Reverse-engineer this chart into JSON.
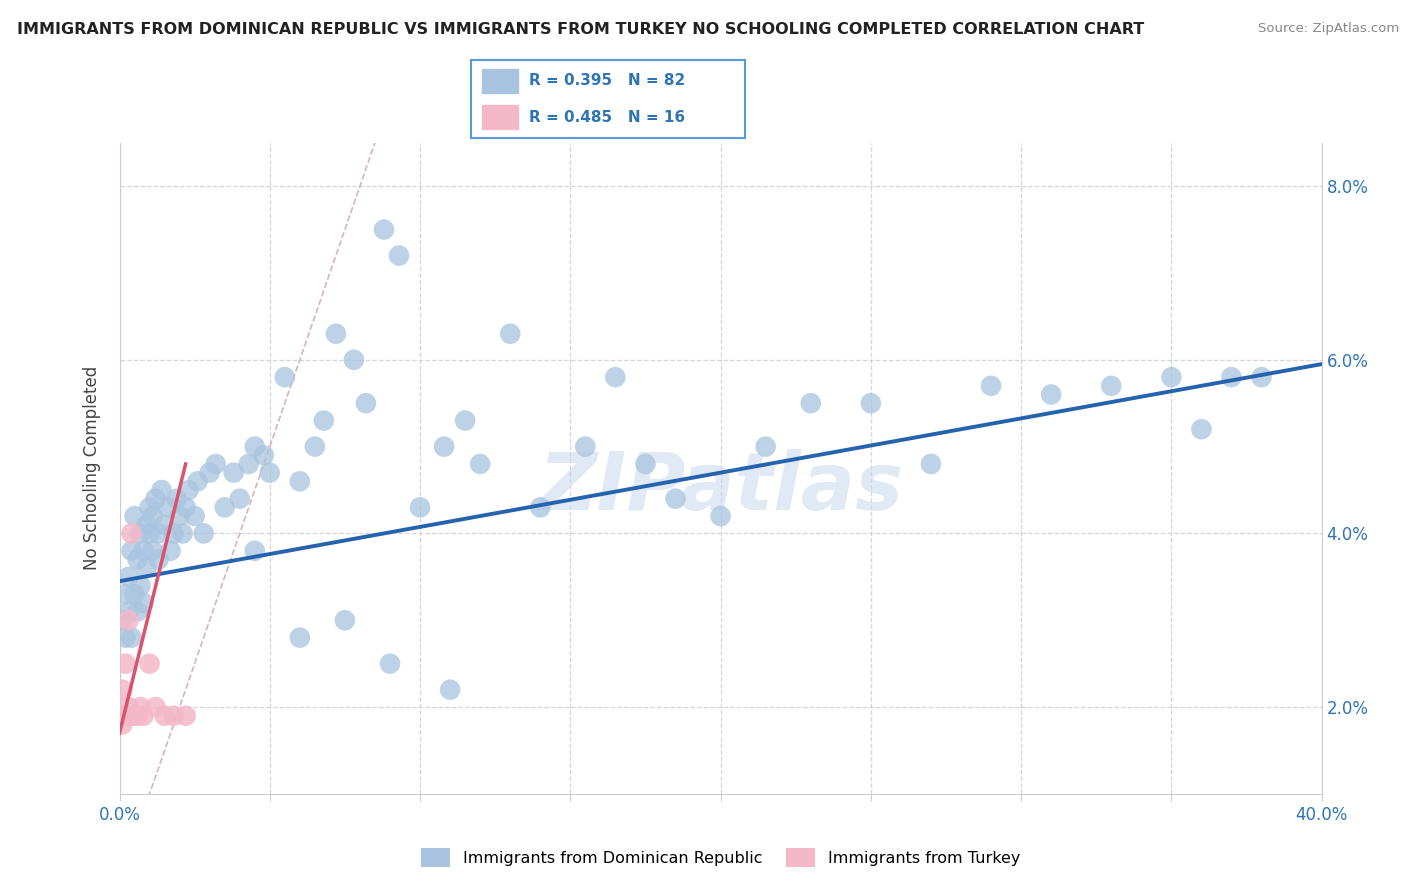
{
  "title": "IMMIGRANTS FROM DOMINICAN REPUBLIC VS IMMIGRANTS FROM TURKEY NO SCHOOLING COMPLETED CORRELATION CHART",
  "source": "Source: ZipAtlas.com",
  "ylabel": "No Schooling Completed",
  "ylabel_right_ticks": [
    "2.0%",
    "4.0%",
    "6.0%",
    "8.0%"
  ],
  "legend_label_blue": "Immigrants from Dominican Republic",
  "legend_label_pink": "Immigrants from Turkey",
  "blue_color": "#a8c4e0",
  "blue_line_color": "#2563ae",
  "pink_color": "#f4b8c8",
  "pink_dot_color": "#e8a0b4",
  "pink_line_color": "#d9536c",
  "ref_line_color": "#d0a0a8",
  "watermark": "ZIPatlas",
  "blue_scatter_x": [
    0.001,
    0.002,
    0.002,
    0.003,
    0.003,
    0.004,
    0.004,
    0.005,
    0.005,
    0.006,
    0.006,
    0.007,
    0.007,
    0.008,
    0.008,
    0.009,
    0.009,
    0.01,
    0.01,
    0.011,
    0.011,
    0.012,
    0.013,
    0.013,
    0.014,
    0.015,
    0.016,
    0.017,
    0.018,
    0.019,
    0.02,
    0.021,
    0.022,
    0.023,
    0.025,
    0.026,
    0.028,
    0.03,
    0.032,
    0.035,
    0.038,
    0.04,
    0.043,
    0.045,
    0.048,
    0.05,
    0.055,
    0.06,
    0.065,
    0.068,
    0.072,
    0.078,
    0.082,
    0.088,
    0.093,
    0.1,
    0.108,
    0.115,
    0.12,
    0.13,
    0.14,
    0.155,
    0.165,
    0.175,
    0.185,
    0.2,
    0.215,
    0.23,
    0.25,
    0.27,
    0.29,
    0.31,
    0.33,
    0.35,
    0.36,
    0.37,
    0.38,
    0.045,
    0.06,
    0.075,
    0.09,
    0.11
  ],
  "blue_scatter_y": [
    0.03,
    0.033,
    0.028,
    0.035,
    0.031,
    0.038,
    0.028,
    0.033,
    0.042,
    0.031,
    0.037,
    0.034,
    0.04,
    0.032,
    0.038,
    0.036,
    0.041,
    0.04,
    0.043,
    0.038,
    0.042,
    0.044,
    0.037,
    0.04,
    0.045,
    0.041,
    0.043,
    0.038,
    0.04,
    0.044,
    0.042,
    0.04,
    0.043,
    0.045,
    0.042,
    0.046,
    0.04,
    0.047,
    0.048,
    0.043,
    0.047,
    0.044,
    0.048,
    0.05,
    0.049,
    0.047,
    0.058,
    0.046,
    0.05,
    0.053,
    0.063,
    0.06,
    0.055,
    0.075,
    0.072,
    0.043,
    0.05,
    0.053,
    0.048,
    0.063,
    0.043,
    0.05,
    0.058,
    0.048,
    0.044,
    0.042,
    0.05,
    0.055,
    0.055,
    0.048,
    0.057,
    0.056,
    0.057,
    0.058,
    0.052,
    0.058,
    0.058,
    0.038,
    0.028,
    0.03,
    0.025,
    0.022
  ],
  "pink_scatter_x": [
    0.001,
    0.001,
    0.002,
    0.002,
    0.003,
    0.003,
    0.004,
    0.005,
    0.006,
    0.007,
    0.008,
    0.01,
    0.012,
    0.015,
    0.018,
    0.022
  ],
  "pink_scatter_y": [
    0.018,
    0.022,
    0.019,
    0.025,
    0.02,
    0.03,
    0.04,
    0.019,
    0.019,
    0.02,
    0.019,
    0.025,
    0.02,
    0.019,
    0.019,
    0.019
  ],
  "blue_line_x": [
    0.0,
    0.4
  ],
  "blue_line_y": [
    0.0345,
    0.0595
  ],
  "pink_line_x": [
    0.0,
    0.022
  ],
  "pink_line_y": [
    0.017,
    0.048
  ],
  "ref_line_x": [
    0.0,
    0.085
  ],
  "ref_line_y": [
    0.0,
    0.085
  ],
  "xlim": [
    0.0,
    0.4
  ],
  "ylim": [
    0.01,
    0.085
  ],
  "yticks": [
    0.02,
    0.04,
    0.06,
    0.08
  ],
  "xticks": [
    0.0,
    0.05,
    0.1,
    0.15,
    0.2,
    0.25,
    0.3,
    0.35,
    0.4
  ],
  "background_color": "#ffffff",
  "grid_color": "#cccccc"
}
